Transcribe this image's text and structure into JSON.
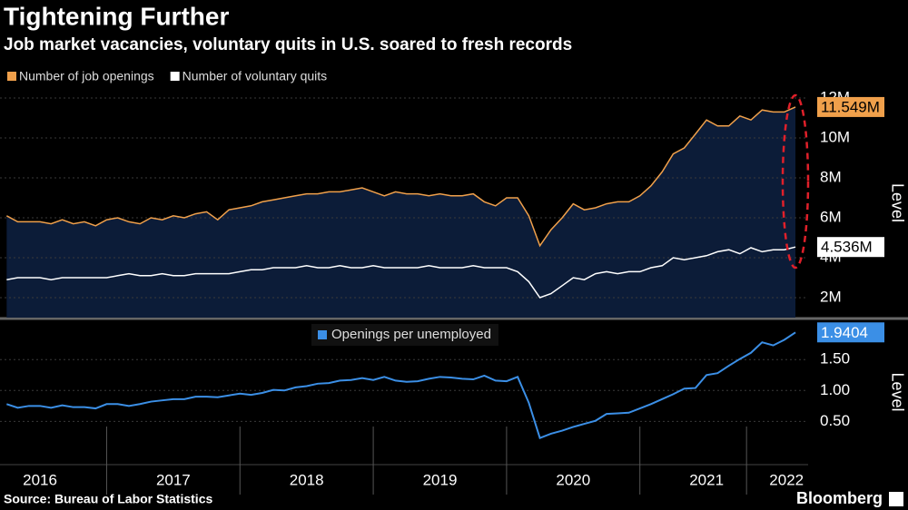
{
  "chart_data": {
    "type": "line",
    "title": "Tightening Further",
    "subtitle": "Job market vacancies, voluntary quits in U.S. soared to fresh records",
    "source": "Source: Bureau of Labor Statistics",
    "brand": "Bloomberg",
    "xlim": [
      2016.2,
      2022.262
    ],
    "xticks": [
      {
        "value": 2016.5,
        "label": "2016"
      },
      {
        "value": 2017.5,
        "label": "2017"
      },
      {
        "value": 2018.5,
        "label": "2018"
      },
      {
        "value": 2019.5,
        "label": "2019"
      },
      {
        "value": 2020.5,
        "label": "2020"
      },
      {
        "value": 2021.5,
        "label": "2021"
      },
      {
        "value": 2022.1,
        "label": "2022"
      }
    ],
    "x": [
      2016.25,
      2016.333,
      2016.417,
      2016.5,
      2016.583,
      2016.667,
      2016.75,
      2016.833,
      2016.917,
      2017,
      2017.083,
      2017.167,
      2017.25,
      2017.333,
      2017.417,
      2017.5,
      2017.583,
      2017.667,
      2017.75,
      2017.833,
      2017.917,
      2018,
      2018.083,
      2018.167,
      2018.25,
      2018.333,
      2018.417,
      2018.5,
      2018.583,
      2018.667,
      2018.75,
      2018.833,
      2018.917,
      2019,
      2019.083,
      2019.167,
      2019.25,
      2019.333,
      2019.417,
      2019.5,
      2019.583,
      2019.667,
      2019.75,
      2019.833,
      2019.917,
      2020,
      2020.083,
      2020.167,
      2020.25,
      2020.333,
      2020.417,
      2020.5,
      2020.583,
      2020.667,
      2020.75,
      2020.833,
      2020.917,
      2021,
      2021.083,
      2021.167,
      2021.25,
      2021.333,
      2021.417,
      2021.5,
      2021.583,
      2021.667,
      2021.75,
      2021.833,
      2021.917,
      2022,
      2022.083,
      2022.167
    ],
    "panels": [
      {
        "ylim": [
          1,
          12.5
        ],
        "ylabel": "Level",
        "yticks": [
          {
            "value": 2,
            "label": "2M"
          },
          {
            "value": 4,
            "label": "4M"
          },
          {
            "value": 6,
            "label": "6M"
          },
          {
            "value": 8,
            "label": "8M"
          },
          {
            "value": 10,
            "label": "10M"
          },
          {
            "value": 12,
            "label": "12M"
          }
        ],
        "series": [
          {
            "name": "Number of job openings",
            "color": "#f0a04b",
            "area": "#0c1c38",
            "last_label": "11.549M",
            "values": [
              6.1,
              5.8,
              5.8,
              5.8,
              5.7,
              5.9,
              5.7,
              5.8,
              5.6,
              5.9,
              6.0,
              5.8,
              5.7,
              6.0,
              5.9,
              6.1,
              6.0,
              6.2,
              6.3,
              5.9,
              6.4,
              6.5,
              6.6,
              6.8,
              6.9,
              7.0,
              7.1,
              7.2,
              7.2,
              7.3,
              7.3,
              7.4,
              7.5,
              7.3,
              7.1,
              7.3,
              7.2,
              7.2,
              7.1,
              7.2,
              7.1,
              7.1,
              7.2,
              6.8,
              6.6,
              7.0,
              7.0,
              6.1,
              4.6,
              5.4,
              6.0,
              6.7,
              6.4,
              6.5,
              6.7,
              6.8,
              6.8,
              7.1,
              7.6,
              8.3,
              9.2,
              9.5,
              10.2,
              10.9,
              10.6,
              10.6,
              11.1,
              10.9,
              11.4,
              11.3,
              11.3,
              11.549
            ]
          },
          {
            "name": "Number of voluntary quits",
            "color": "#ffffff",
            "last_label": "4.536M",
            "values": [
              2.9,
              3.0,
              3.0,
              3.0,
              2.9,
              3.0,
              3.0,
              3.0,
              3.0,
              3.0,
              3.1,
              3.2,
              3.1,
              3.1,
              3.2,
              3.1,
              3.1,
              3.2,
              3.2,
              3.2,
              3.2,
              3.3,
              3.4,
              3.4,
              3.5,
              3.5,
              3.5,
              3.6,
              3.5,
              3.5,
              3.6,
              3.5,
              3.5,
              3.6,
              3.5,
              3.5,
              3.5,
              3.5,
              3.6,
              3.5,
              3.5,
              3.5,
              3.6,
              3.5,
              3.5,
              3.5,
              3.3,
              2.8,
              2.0,
              2.2,
              2.6,
              3.0,
              2.9,
              3.2,
              3.3,
              3.2,
              3.3,
              3.3,
              3.5,
              3.6,
              4.0,
              3.9,
              4.0,
              4.1,
              4.3,
              4.4,
              4.2,
              4.5,
              4.3,
              4.4,
              4.4,
              4.536
            ]
          }
        ]
      },
      {
        "ylim": [
          -0.2,
          2.15
        ],
        "ylabel": "Level",
        "yticks": [
          {
            "value": 0.5,
            "label": "0.50"
          },
          {
            "value": 1,
            "label": "1.00"
          },
          {
            "value": 1.5,
            "label": "1.50"
          }
        ],
        "series": [
          {
            "name": "Openings per unemployed",
            "color": "#3b8fe6",
            "values": [
              0.78,
              0.72,
              0.75,
              0.75,
              0.72,
              0.76,
              0.73,
              0.73,
              0.71,
              0.78,
              0.78,
              0.75,
              0.78,
              0.82,
              0.84,
              0.86,
              0.86,
              0.9,
              0.9,
              0.89,
              0.92,
              0.95,
              0.93,
              0.96,
              1.01,
              1.0,
              1.05,
              1.07,
              1.11,
              1.12,
              1.16,
              1.17,
              1.2,
              1.17,
              1.22,
              1.16,
              1.14,
              1.15,
              1.19,
              1.22,
              1.21,
              1.19,
              1.18,
              1.24,
              1.16,
              1.15,
              1.22,
              0.8,
              0.23,
              0.3,
              0.35,
              0.41,
              0.46,
              0.51,
              0.62,
              0.63,
              0.64,
              0.71,
              0.78,
              0.86,
              0.94,
              1.03,
              1.04,
              1.25,
              1.28,
              1.4,
              1.51,
              1.61,
              1.78,
              1.73,
              1.82,
              1.9404
            ]
          }
        ]
      }
    ]
  }
}
